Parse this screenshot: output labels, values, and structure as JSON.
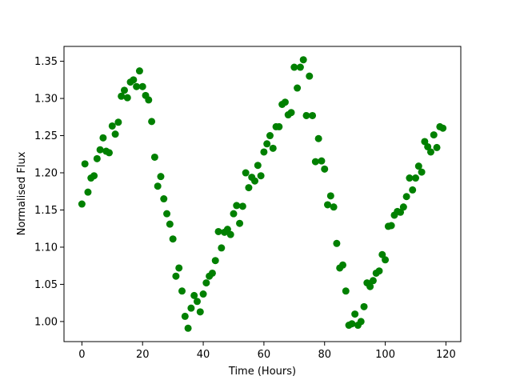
{
  "chart_data": {
    "type": "scatter",
    "xlabel": "Time (Hours)",
    "ylabel": "Normalised Flux",
    "xlim": [
      -5.9,
      124.9
    ],
    "ylim": [
      0.973,
      1.37
    ],
    "x_ticks": [
      0,
      20,
      40,
      60,
      80,
      100,
      120
    ],
    "x_tick_labels": [
      "0",
      "20",
      "40",
      "60",
      "80",
      "100",
      "120"
    ],
    "y_ticks": [
      1.0,
      1.05,
      1.1,
      1.15,
      1.2,
      1.25,
      1.3,
      1.35
    ],
    "y_tick_labels": [
      "1.00",
      "1.05",
      "1.10",
      "1.15",
      "1.20",
      "1.25",
      "1.30",
      "1.35"
    ],
    "grid": false,
    "legend": "none",
    "marker_color": "#008000",
    "series": [
      {
        "x": [
          0,
          1,
          2,
          3,
          4,
          5,
          6,
          7,
          8,
          9,
          10,
          11,
          12,
          13,
          14,
          15,
          16,
          17,
          18,
          19,
          20,
          21,
          22,
          23,
          24,
          25,
          26,
          27,
          28,
          29,
          30,
          31,
          32,
          33,
          34,
          35,
          36,
          37,
          38,
          39,
          40,
          41,
          42,
          43,
          44,
          45,
          46,
          47,
          48,
          49,
          50,
          51,
          52,
          53,
          54,
          55,
          56,
          57,
          58,
          59,
          60,
          61,
          62,
          63,
          64,
          65,
          66,
          67,
          68,
          69,
          70,
          71,
          72,
          73,
          74,
          75,
          76,
          77,
          78,
          79,
          80,
          81,
          82,
          83,
          84,
          85,
          86,
          87,
          88,
          89,
          90,
          91,
          92,
          93,
          94,
          95,
          96,
          97,
          98,
          99,
          100,
          101,
          102,
          103,
          104,
          105,
          106,
          107,
          108,
          109,
          110,
          111,
          112,
          113,
          114,
          115,
          116,
          117,
          118,
          119
        ],
        "y": [
          1.158,
          1.212,
          1.174,
          1.193,
          1.196,
          1.219,
          1.231,
          1.247,
          1.229,
          1.227,
          1.263,
          1.252,
          1.268,
          1.303,
          1.311,
          1.301,
          1.322,
          1.325,
          1.316,
          1.337,
          1.316,
          1.304,
          1.298,
          1.269,
          1.221,
          1.182,
          1.195,
          1.165,
          1.145,
          1.131,
          1.111,
          1.061,
          1.072,
          1.041,
          1.007,
          0.991,
          1.018,
          1.035,
          1.027,
          1.013,
          1.037,
          1.052,
          1.061,
          1.065,
          1.082,
          1.121,
          1.099,
          1.12,
          1.124,
          1.117,
          1.145,
          1.156,
          1.132,
          1.155,
          1.2,
          1.18,
          1.194,
          1.189,
          1.21,
          1.196,
          1.228,
          1.239,
          1.25,
          1.233,
          1.262,
          1.262,
          1.292,
          1.295,
          1.278,
          1.281,
          1.342,
          1.314,
          1.342,
          1.352,
          1.277,
          1.33,
          1.277,
          1.215,
          1.246,
          1.216,
          1.205,
          1.157,
          1.169,
          1.154,
          1.105,
          1.072,
          1.076,
          1.041,
          0.995,
          0.997,
          1.01,
          0.995,
          1.0,
          1.02,
          1.052,
          1.047,
          1.055,
          1.065,
          1.068,
          1.09,
          1.083,
          1.128,
          1.129,
          1.143,
          1.148,
          1.147,
          1.154,
          1.168,
          1.193,
          1.177,
          1.193,
          1.209,
          1.201,
          1.242,
          1.235,
          1.228,
          1.251,
          1.234,
          1.262,
          1.26
        ]
      }
    ]
  }
}
